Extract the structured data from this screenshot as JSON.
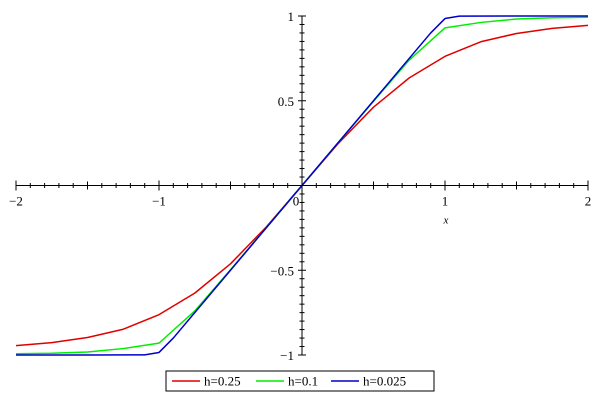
{
  "chart_data": {
    "type": "line",
    "title": "",
    "xlabel": "x",
    "ylabel": "",
    "xlim": [
      -2,
      2
    ],
    "ylim": [
      -1,
      1
    ],
    "grid": false,
    "legend_position": "bottom",
    "x_ticks": [
      {
        "value": -2,
        "label": "−2"
      },
      {
        "value": -1,
        "label": "−1"
      },
      {
        "value": 0,
        "label": "0"
      },
      {
        "value": 1,
        "label": "1"
      },
      {
        "value": 2,
        "label": "2"
      }
    ],
    "y_ticks": [
      {
        "value": 1,
        "label": "1"
      },
      {
        "value": 0.5,
        "label": "0.5"
      },
      {
        "value": -0.5,
        "label": "−0.5"
      },
      {
        "value": -1,
        "label": "−1"
      }
    ],
    "series": [
      {
        "name": "h=0.25",
        "color": "#e00000",
        "x": [
          -2,
          -1.75,
          -1.5,
          -1.25,
          -1,
          -0.75,
          -0.5,
          -0.25,
          0,
          0.25,
          0.5,
          0.75,
          1,
          1.25,
          1.5,
          1.75,
          2
        ],
        "y": [
          -0.945,
          -0.927,
          -0.897,
          -0.848,
          -0.762,
          -0.635,
          -0.462,
          -0.245,
          0,
          0.245,
          0.462,
          0.635,
          0.762,
          0.848,
          0.897,
          0.927,
          0.945
        ]
      },
      {
        "name": "h=0.1",
        "color": "#00ee00",
        "x": [
          -2,
          -1.75,
          -1.5,
          -1.25,
          -1,
          -0.75,
          -0.5,
          -0.25,
          0,
          0.25,
          0.5,
          0.75,
          1,
          1.25,
          1.5,
          1.75,
          2
        ],
        "y": [
          -0.993,
          -0.99,
          -0.982,
          -0.962,
          -0.93,
          -0.74,
          -0.497,
          -0.25,
          0,
          0.25,
          0.497,
          0.74,
          0.93,
          0.962,
          0.982,
          0.99,
          0.993
        ]
      },
      {
        "name": "h=0.025",
        "color": "#0000cc",
        "x": [
          -2,
          -1.5,
          -1.1,
          -1.0,
          -0.9,
          -0.5,
          0,
          0.5,
          0.9,
          1.0,
          1.1,
          1.5,
          2
        ],
        "y": [
          -1,
          -1,
          -0.999,
          -0.985,
          -0.9,
          -0.5,
          0,
          0.5,
          0.9,
          0.985,
          0.999,
          1,
          1
        ]
      }
    ]
  }
}
